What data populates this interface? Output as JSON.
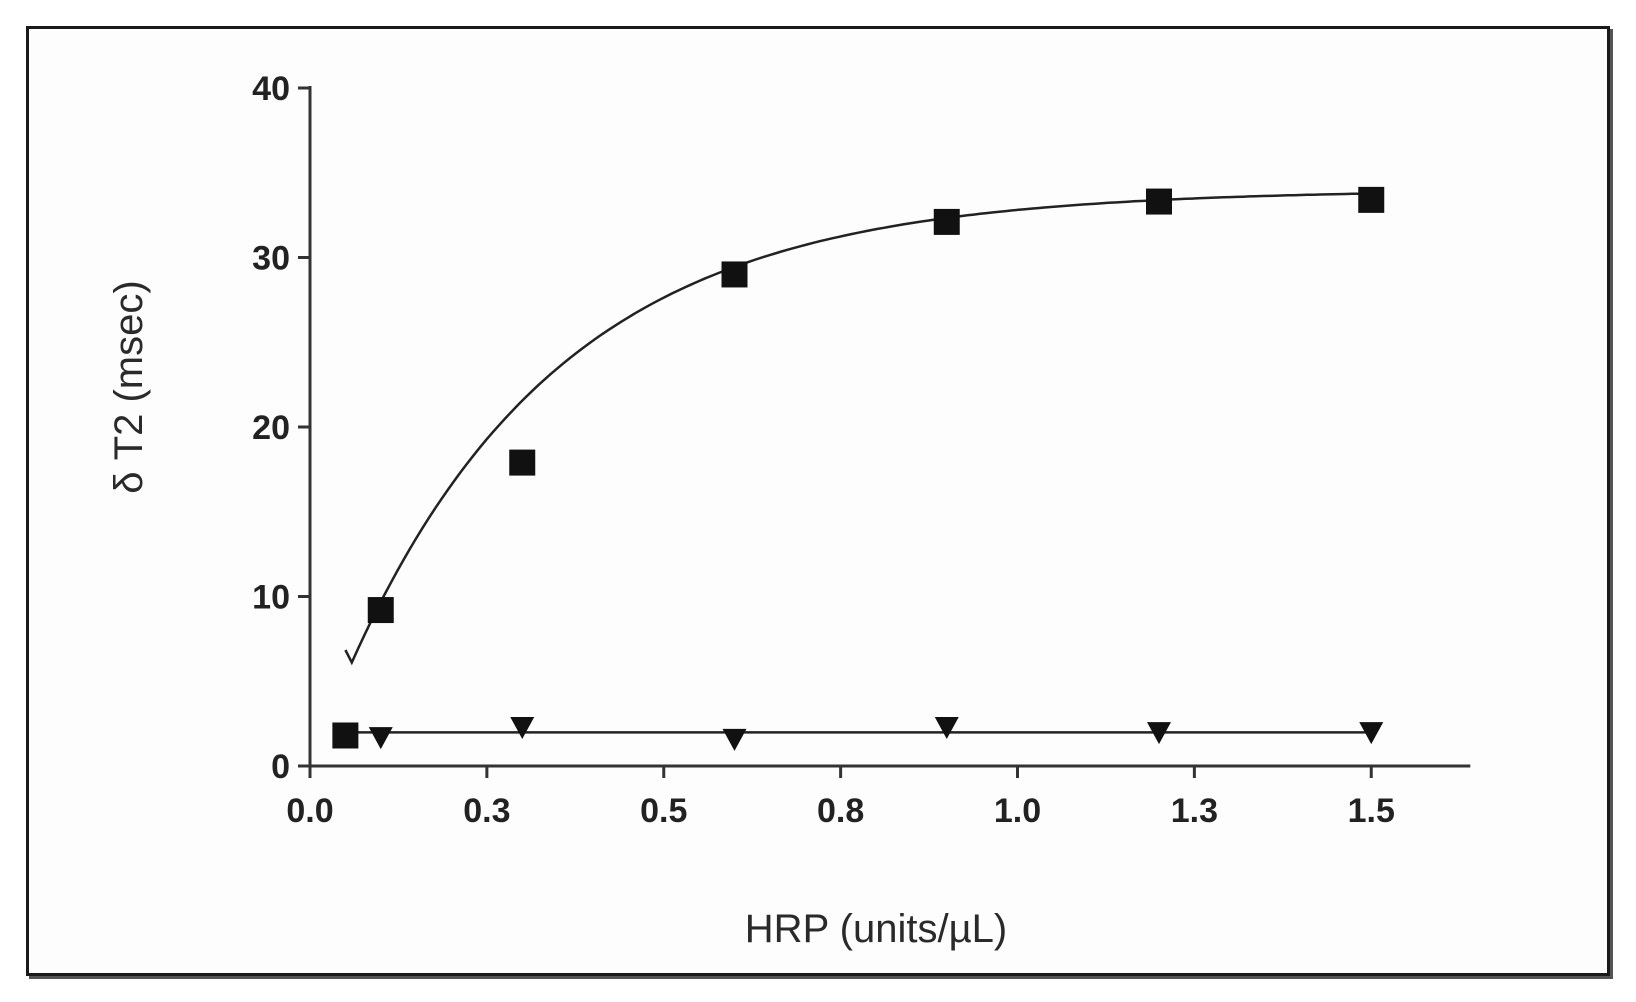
{
  "chart_data": {
    "type": "scatter",
    "xlabel": "HRP (units/µL)",
    "ylabel": "δ T2 (msec)",
    "xlim": [
      0.0,
      1.6
    ],
    "ylim": [
      0,
      40
    ],
    "x_ticks": [
      0.0,
      0.25,
      0.5,
      0.75,
      1.0,
      1.25,
      1.5
    ],
    "x_tick_labels": [
      "0.0",
      "0.3",
      "0.5",
      "0.8",
      "1.0",
      "1.3",
      "1.5"
    ],
    "y_ticks": [
      0,
      10,
      20,
      30,
      40
    ],
    "y_tick_labels": [
      "0",
      "10",
      "20",
      "30",
      "40"
    ],
    "grid": false,
    "legend": "none",
    "series": [
      {
        "marker": "square",
        "color": "#111111",
        "fit": "exponential",
        "x": [
          0.05,
          0.1,
          0.3,
          0.6,
          0.9,
          1.2,
          1.5
        ],
        "y": [
          1.8,
          9.2,
          17.9,
          29.0,
          32.1,
          33.3,
          33.4
        ]
      },
      {
        "marker": "triangle-down",
        "color": "#111111",
        "fit": "flat",
        "x": [
          0.1,
          0.3,
          0.6,
          0.9,
          1.2,
          1.5
        ],
        "y": [
          1.7,
          2.3,
          1.6,
          2.3,
          2.0,
          2.0
        ]
      }
    ]
  }
}
